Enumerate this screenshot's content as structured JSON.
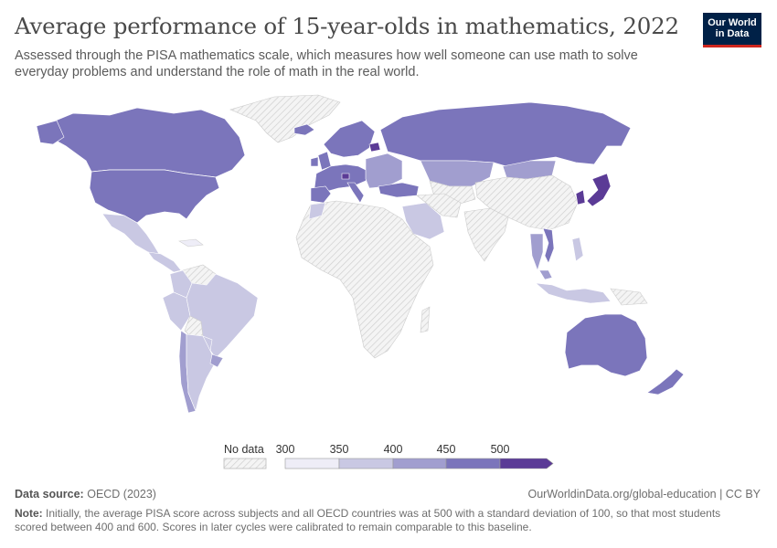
{
  "header": {
    "title": "Average performance of 15-year-olds in mathematics, 2022",
    "subtitle": "Assessed through the PISA mathematics scale, which measures how well someone can use math to solve everyday problems and understand the role of math in the real world.",
    "logo_line1": "Our World",
    "logo_line2": "in Data"
  },
  "legend": {
    "no_data_label": "No data",
    "ticks": [
      "300",
      "350",
      "400",
      "450",
      "500"
    ],
    "colors": [
      "#eeedf7",
      "#c9c8e3",
      "#a19ecf",
      "#7b75bb",
      "#5b3b96"
    ]
  },
  "footer": {
    "source_label": "Data source:",
    "source_value": "OECD (2023)",
    "url": "OurWorldinData.org/global-education | CC BY",
    "note_label": "Note:",
    "note_text": "Initially, the average PISA score across subjects and all OECD countries was at 500 with a standard deviation of 100, so that most students scored between 400 and 600. Scores in later cycles were calibrated to remain comparable to this baseline."
  },
  "colors": {
    "brand": "#002147",
    "brand_accent": "#ce261e",
    "no_data_fill": "#f2f2f2",
    "border": "#ffffff"
  }
}
